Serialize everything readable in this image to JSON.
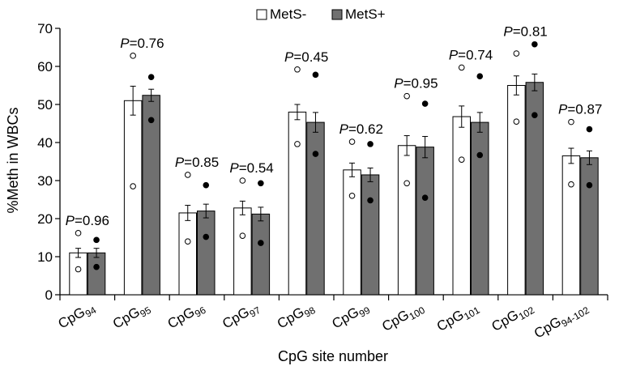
{
  "chart_data": {
    "type": "bar",
    "ylabel": "%Meth in WBCs",
    "xlabel": "CpG site number",
    "ylim": [
      0,
      70
    ],
    "yticks": [
      0,
      10,
      20,
      30,
      40,
      50,
      60,
      70
    ],
    "legend_position": "top-center",
    "categories": [
      {
        "base": "CpG",
        "sub": "94"
      },
      {
        "base": "CpG",
        "sub": "95"
      },
      {
        "base": "CpG",
        "sub": "96"
      },
      {
        "base": "CpG",
        "sub": "97"
      },
      {
        "base": "CpG",
        "sub": "98"
      },
      {
        "base": "CpG",
        "sub": "99"
      },
      {
        "base": "CpG",
        "sub": "100"
      },
      {
        "base": "CpG",
        "sub": "101"
      },
      {
        "base": "CpG",
        "sub": "102"
      },
      {
        "base": "CpG",
        "sub": "94-102"
      }
    ],
    "p_labels": [
      "=0.96",
      "=0.76",
      "=0.85",
      "=0.54",
      "=0.45",
      "=0.62",
      "=0.95",
      "=0.74",
      "=0.81",
      "=0.87"
    ],
    "p_prefix": "P",
    "series": [
      {
        "name": "MetS-",
        "color": "#ffffff",
        "values": [
          11,
          51,
          21.5,
          22.8,
          48,
          32.8,
          39.2,
          46.8,
          55,
          36.5
        ],
        "errors": [
          1.2,
          3.8,
          2.0,
          1.8,
          2.0,
          1.8,
          2.6,
          2.8,
          2.5,
          2.0
        ],
        "max": [
          16.2,
          62.8,
          31.5,
          30,
          59.2,
          40.2,
          52.2,
          59.7,
          63.4,
          45.4
        ],
        "min": [
          6.7,
          28.5,
          14,
          15.5,
          39.6,
          26,
          29.3,
          35.5,
          45.5,
          29
        ]
      },
      {
        "name": "MetS+",
        "color": "#707070",
        "values": [
          11,
          52.4,
          22,
          21.2,
          45.3,
          31.5,
          38.8,
          45.3,
          55.8,
          36
        ],
        "errors": [
          1.2,
          1.6,
          1.8,
          1.8,
          2.6,
          1.8,
          2.8,
          2.6,
          2.2,
          1.8
        ],
        "max": [
          14.4,
          57.2,
          28.8,
          29.3,
          57.8,
          39.6,
          50.2,
          57.4,
          65.8,
          43.5
        ],
        "min": [
          7.3,
          45.9,
          15.2,
          13.6,
          37,
          24.8,
          25.5,
          36.7,
          47.2,
          28.8
        ]
      }
    ]
  }
}
